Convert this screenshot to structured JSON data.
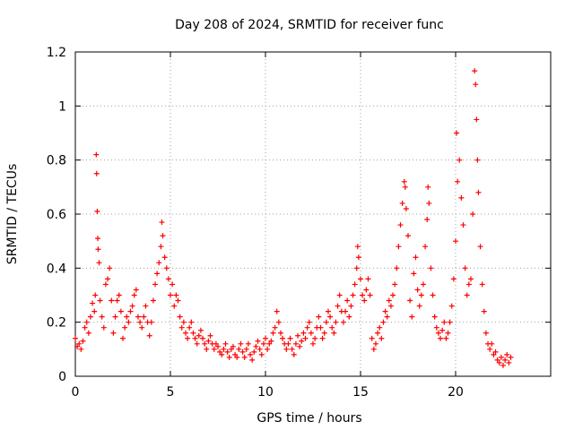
{
  "chart_data": {
    "type": "scatter",
    "title": "Day 208 of 2024, SRMTID for receiver func",
    "xlabel": "GPS time / hours",
    "ylabel": "SRMTID / TECUs",
    "xlim": [
      0,
      25
    ],
    "ylim": [
      0,
      1.2
    ],
    "xticks": [
      0,
      5,
      10,
      15,
      20
    ],
    "xtick_labels": [
      "0",
      "5",
      "10",
      "15",
      "20"
    ],
    "yticks": [
      0,
      0.2,
      0.4,
      0.6,
      0.8,
      1.0,
      1.2
    ],
    "ytick_labels": [
      "0",
      "0.2",
      "0.4",
      "0.6",
      "0.8",
      "1",
      "1.2"
    ],
    "grid": true,
    "marker": "+",
    "color": "#ff0000",
    "series": [
      {
        "name": "SRMTID",
        "points": [
          [
            0.0,
            0.14
          ],
          [
            0.1,
            0.11
          ],
          [
            0.2,
            0.12
          ],
          [
            0.3,
            0.1
          ],
          [
            0.4,
            0.13
          ],
          [
            0.5,
            0.18
          ],
          [
            0.6,
            0.2
          ],
          [
            0.7,
            0.16
          ],
          [
            0.8,
            0.22
          ],
          [
            0.9,
            0.27
          ],
          [
            1.0,
            0.24
          ],
          [
            1.05,
            0.3
          ],
          [
            1.1,
            0.82
          ],
          [
            1.12,
            0.75
          ],
          [
            1.15,
            0.61
          ],
          [
            1.18,
            0.51
          ],
          [
            1.2,
            0.47
          ],
          [
            1.25,
            0.42
          ],
          [
            1.3,
            0.28
          ],
          [
            1.4,
            0.22
          ],
          [
            1.5,
            0.18
          ],
          [
            1.6,
            0.34
          ],
          [
            1.7,
            0.36
          ],
          [
            1.8,
            0.4
          ],
          [
            1.9,
            0.28
          ],
          [
            2.0,
            0.16
          ],
          [
            2.1,
            0.22
          ],
          [
            2.2,
            0.28
          ],
          [
            2.3,
            0.3
          ],
          [
            2.4,
            0.24
          ],
          [
            2.5,
            0.14
          ],
          [
            2.6,
            0.18
          ],
          [
            2.7,
            0.22
          ],
          [
            2.8,
            0.2
          ],
          [
            2.9,
            0.24
          ],
          [
            3.0,
            0.26
          ],
          [
            3.1,
            0.3
          ],
          [
            3.2,
            0.32
          ],
          [
            3.3,
            0.22
          ],
          [
            3.4,
            0.2
          ],
          [
            3.5,
            0.18
          ],
          [
            3.6,
            0.22
          ],
          [
            3.7,
            0.26
          ],
          [
            3.8,
            0.2
          ],
          [
            3.9,
            0.15
          ],
          [
            4.0,
            0.2
          ],
          [
            4.1,
            0.28
          ],
          [
            4.2,
            0.34
          ],
          [
            4.3,
            0.38
          ],
          [
            4.4,
            0.42
          ],
          [
            4.5,
            0.48
          ],
          [
            4.55,
            0.57
          ],
          [
            4.6,
            0.52
          ],
          [
            4.7,
            0.44
          ],
          [
            4.8,
            0.4
          ],
          [
            4.9,
            0.36
          ],
          [
            5.0,
            0.3
          ],
          [
            5.1,
            0.34
          ],
          [
            5.2,
            0.26
          ],
          [
            5.3,
            0.3
          ],
          [
            5.4,
            0.28
          ],
          [
            5.5,
            0.22
          ],
          [
            5.6,
            0.18
          ],
          [
            5.7,
            0.2
          ],
          [
            5.8,
            0.16
          ],
          [
            5.9,
            0.14
          ],
          [
            6.0,
            0.18
          ],
          [
            6.1,
            0.2
          ],
          [
            6.2,
            0.16
          ],
          [
            6.3,
            0.14
          ],
          [
            6.4,
            0.12
          ],
          [
            6.5,
            0.15
          ],
          [
            6.6,
            0.17
          ],
          [
            6.7,
            0.14
          ],
          [
            6.8,
            0.12
          ],
          [
            6.9,
            0.1
          ],
          [
            7.0,
            0.13
          ],
          [
            7.1,
            0.15
          ],
          [
            7.2,
            0.12
          ],
          [
            7.3,
            0.1
          ],
          [
            7.4,
            0.12
          ],
          [
            7.5,
            0.11
          ],
          [
            7.6,
            0.09
          ],
          [
            7.7,
            0.08
          ],
          [
            7.8,
            0.1
          ],
          [
            7.9,
            0.12
          ],
          [
            8.0,
            0.09
          ],
          [
            8.1,
            0.07
          ],
          [
            8.2,
            0.1
          ],
          [
            8.3,
            0.11
          ],
          [
            8.4,
            0.08
          ],
          [
            8.5,
            0.07
          ],
          [
            8.6,
            0.1
          ],
          [
            8.7,
            0.12
          ],
          [
            8.8,
            0.09
          ],
          [
            8.9,
            0.07
          ],
          [
            9.0,
            0.1
          ],
          [
            9.1,
            0.12
          ],
          [
            9.2,
            0.08
          ],
          [
            9.3,
            0.06
          ],
          [
            9.4,
            0.09
          ],
          [
            9.5,
            0.11
          ],
          [
            9.6,
            0.13
          ],
          [
            9.7,
            0.1
          ],
          [
            9.8,
            0.08
          ],
          [
            9.9,
            0.12
          ],
          [
            10.0,
            0.14
          ],
          [
            10.1,
            0.1
          ],
          [
            10.2,
            0.12
          ],
          [
            10.3,
            0.13
          ],
          [
            10.4,
            0.16
          ],
          [
            10.5,
            0.18
          ],
          [
            10.6,
            0.24
          ],
          [
            10.7,
            0.2
          ],
          [
            10.8,
            0.16
          ],
          [
            10.9,
            0.14
          ],
          [
            11.0,
            0.12
          ],
          [
            11.1,
            0.1
          ],
          [
            11.2,
            0.12
          ],
          [
            11.3,
            0.14
          ],
          [
            11.4,
            0.1
          ],
          [
            11.5,
            0.08
          ],
          [
            11.6,
            0.12
          ],
          [
            11.7,
            0.15
          ],
          [
            11.8,
            0.11
          ],
          [
            11.9,
            0.13
          ],
          [
            12.0,
            0.16
          ],
          [
            12.1,
            0.14
          ],
          [
            12.2,
            0.18
          ],
          [
            12.3,
            0.2
          ],
          [
            12.4,
            0.16
          ],
          [
            12.5,
            0.12
          ],
          [
            12.6,
            0.14
          ],
          [
            12.7,
            0.18
          ],
          [
            12.8,
            0.22
          ],
          [
            12.9,
            0.18
          ],
          [
            13.0,
            0.14
          ],
          [
            13.1,
            0.16
          ],
          [
            13.2,
            0.2
          ],
          [
            13.3,
            0.24
          ],
          [
            13.4,
            0.22
          ],
          [
            13.5,
            0.18
          ],
          [
            13.6,
            0.16
          ],
          [
            13.7,
            0.2
          ],
          [
            13.8,
            0.26
          ],
          [
            13.9,
            0.3
          ],
          [
            14.0,
            0.24
          ],
          [
            14.1,
            0.2
          ],
          [
            14.2,
            0.24
          ],
          [
            14.3,
            0.28
          ],
          [
            14.4,
            0.22
          ],
          [
            14.5,
            0.26
          ],
          [
            14.6,
            0.3
          ],
          [
            14.7,
            0.34
          ],
          [
            14.8,
            0.4
          ],
          [
            14.85,
            0.48
          ],
          [
            14.9,
            0.44
          ],
          [
            15.0,
            0.36
          ],
          [
            15.1,
            0.3
          ],
          [
            15.2,
            0.28
          ],
          [
            15.3,
            0.32
          ],
          [
            15.4,
            0.36
          ],
          [
            15.5,
            0.3
          ],
          [
            15.6,
            0.14
          ],
          [
            15.7,
            0.1
          ],
          [
            15.8,
            0.12
          ],
          [
            15.9,
            0.16
          ],
          [
            16.0,
            0.18
          ],
          [
            16.1,
            0.14
          ],
          [
            16.2,
            0.2
          ],
          [
            16.3,
            0.24
          ],
          [
            16.4,
            0.22
          ],
          [
            16.5,
            0.28
          ],
          [
            16.6,
            0.26
          ],
          [
            16.7,
            0.3
          ],
          [
            16.8,
            0.34
          ],
          [
            16.9,
            0.4
          ],
          [
            17.0,
            0.48
          ],
          [
            17.1,
            0.56
          ],
          [
            17.2,
            0.64
          ],
          [
            17.3,
            0.72
          ],
          [
            17.35,
            0.7
          ],
          [
            17.4,
            0.62
          ],
          [
            17.5,
            0.52
          ],
          [
            17.6,
            0.28
          ],
          [
            17.7,
            0.22
          ],
          [
            17.8,
            0.38
          ],
          [
            17.9,
            0.44
          ],
          [
            18.0,
            0.32
          ],
          [
            18.1,
            0.26
          ],
          [
            18.2,
            0.3
          ],
          [
            18.3,
            0.34
          ],
          [
            18.4,
            0.48
          ],
          [
            18.5,
            0.58
          ],
          [
            18.55,
            0.7
          ],
          [
            18.6,
            0.64
          ],
          [
            18.7,
            0.4
          ],
          [
            18.8,
            0.3
          ],
          [
            18.9,
            0.22
          ],
          [
            19.0,
            0.18
          ],
          [
            19.1,
            0.16
          ],
          [
            19.2,
            0.14
          ],
          [
            19.3,
            0.17
          ],
          [
            19.4,
            0.2
          ],
          [
            19.5,
            0.14
          ],
          [
            19.6,
            0.16
          ],
          [
            19.7,
            0.2
          ],
          [
            19.8,
            0.26
          ],
          [
            19.9,
            0.36
          ],
          [
            20.0,
            0.5
          ],
          [
            20.05,
            0.9
          ],
          [
            20.1,
            0.72
          ],
          [
            20.2,
            0.8
          ],
          [
            20.3,
            0.66
          ],
          [
            20.4,
            0.56
          ],
          [
            20.5,
            0.4
          ],
          [
            20.6,
            0.3
          ],
          [
            20.7,
            0.34
          ],
          [
            20.8,
            0.36
          ],
          [
            20.9,
            0.6
          ],
          [
            21.0,
            1.13
          ],
          [
            21.05,
            1.08
          ],
          [
            21.1,
            0.95
          ],
          [
            21.15,
            0.8
          ],
          [
            21.2,
            0.68
          ],
          [
            21.3,
            0.48
          ],
          [
            21.4,
            0.34
          ],
          [
            21.5,
            0.24
          ],
          [
            21.6,
            0.16
          ],
          [
            21.7,
            0.12
          ],
          [
            21.8,
            0.1
          ],
          [
            21.9,
            0.12
          ],
          [
            22.0,
            0.08
          ],
          [
            22.1,
            0.09
          ],
          [
            22.2,
            0.06
          ],
          [
            22.3,
            0.05
          ],
          [
            22.4,
            0.07
          ],
          [
            22.5,
            0.04
          ],
          [
            22.6,
            0.06
          ],
          [
            22.7,
            0.08
          ],
          [
            22.8,
            0.05
          ],
          [
            22.9,
            0.07
          ]
        ]
      }
    ]
  }
}
